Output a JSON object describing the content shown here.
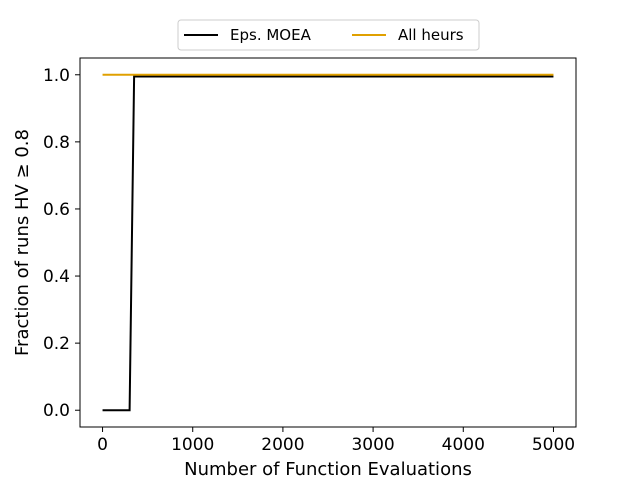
{
  "chart_data": {
    "type": "line",
    "title": "",
    "xlabel": "Number of Function Evaluations",
    "ylabel": "Fraction of runs HV ≥ 0.8",
    "xlim": [
      -250,
      5250
    ],
    "ylim": [
      -0.05,
      1.05
    ],
    "xticks": [
      0,
      1000,
      2000,
      3000,
      4000,
      5000
    ],
    "yticks": [
      0.0,
      0.2,
      0.4,
      0.6,
      0.8,
      1.0
    ],
    "xtick_labels": [
      "0",
      "1000",
      "2000",
      "3000",
      "4000",
      "5000"
    ],
    "ytick_labels": [
      "0.0",
      "0.2",
      "0.4",
      "0.6",
      "0.8",
      "1.0"
    ],
    "grid": false,
    "legend": {
      "placement": "top-center-outside",
      "columns": 2
    },
    "series": [
      {
        "name": "Eps. MOEA",
        "color": "#000000",
        "x": [
          0,
          300,
          350,
          5000
        ],
        "y": [
          0.0,
          0.0,
          0.995,
          0.995
        ]
      },
      {
        "name": "All heurs",
        "color": "#e0a000",
        "x": [
          0,
          5000
        ],
        "y": [
          1.0,
          1.0
        ]
      }
    ]
  }
}
